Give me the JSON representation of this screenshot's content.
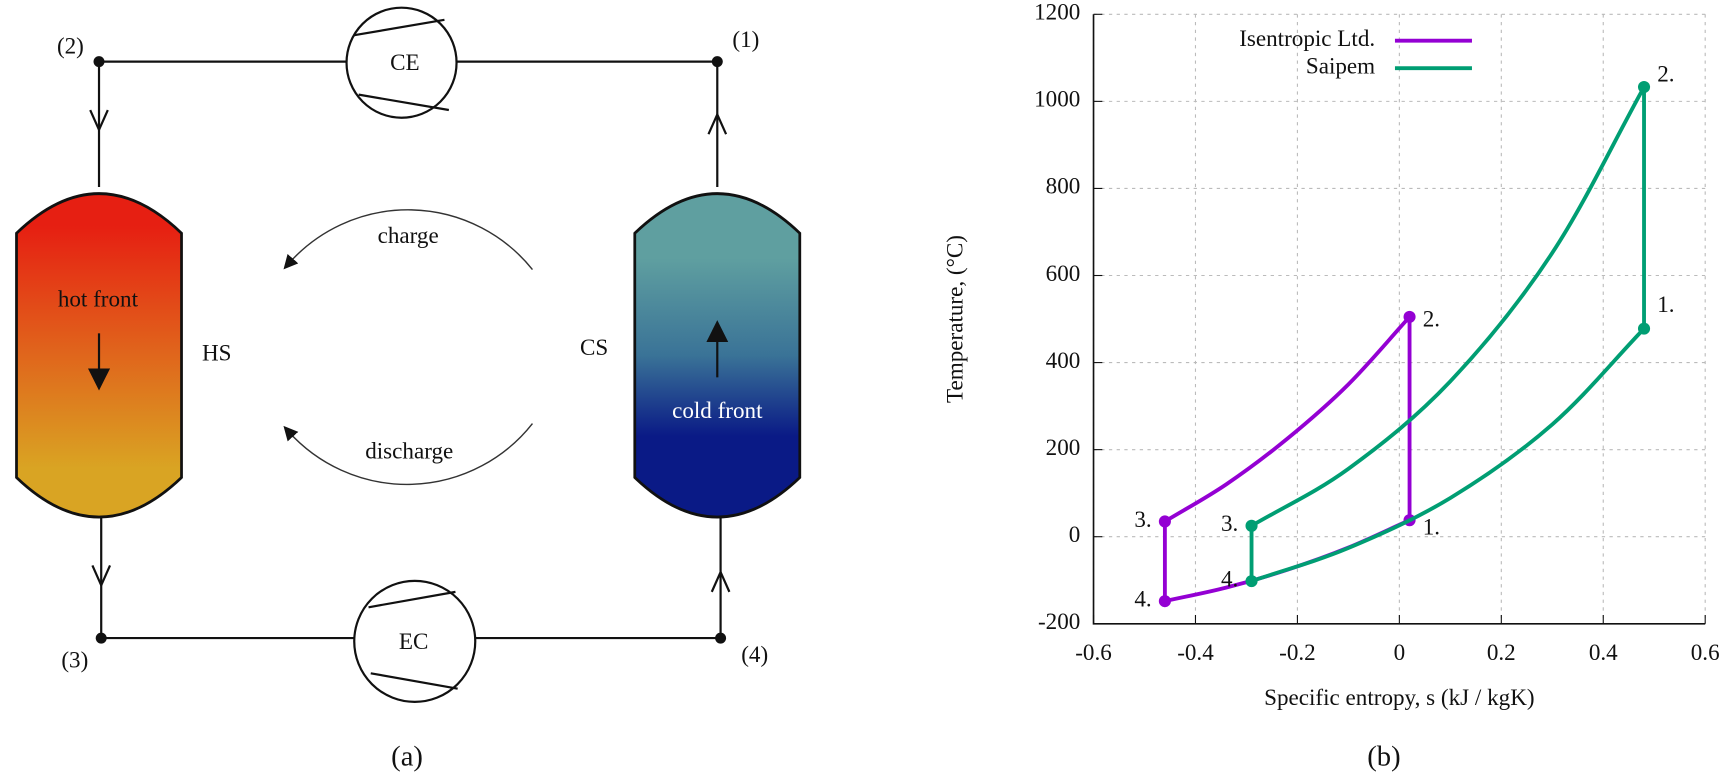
{
  "diagram": {
    "nodes": [
      "(1)",
      "(2)",
      "(3)",
      "(4)"
    ],
    "compressor": "CE",
    "expander": "EC",
    "hot_storage": "HS",
    "cold_storage": "CS",
    "hot_front": "hot front",
    "cold_front": "cold front",
    "charge": "charge",
    "discharge": "discharge",
    "caption": "(a)"
  },
  "chart_data": {
    "type": "line",
    "caption": "(b)",
    "x_label": "Specific entropy, s (kJ / kgK)",
    "y_label": "Temperature, (°C)",
    "xlim": [
      -0.6,
      0.6
    ],
    "xticks": [
      -0.6,
      -0.4,
      -0.2,
      0,
      0.2,
      0.4,
      0.6
    ],
    "ylim": [
      -200,
      1200
    ],
    "yticks": [
      -200,
      0,
      200,
      400,
      600,
      800,
      1000,
      1200
    ],
    "grid": true,
    "legend": "top",
    "series": [
      {
        "name": "Isentropic Ltd.",
        "color": "#9400d3",
        "x": [
          -0.46,
          -0.34,
          -0.22,
          -0.1,
          0.02,
          0.02,
          -0.1,
          -0.22,
          -0.34,
          -0.46
        ],
        "values": [
          35,
          120,
          225,
          350,
          505,
          38,
          -25,
          -76,
          -117,
          -148
        ],
        "point_labels": [
          "3.",
          null,
          null,
          null,
          "2.",
          "1.",
          null,
          null,
          null,
          "4."
        ]
      },
      {
        "name": "Saipem",
        "color": "#009e73",
        "x": [
          -0.29,
          -0.1,
          0.1,
          0.3,
          0.48,
          0.48,
          0.3,
          0.1,
          -0.1,
          -0.29
        ],
        "values": [
          25,
          156,
          357,
          652,
          1033,
          478,
          258,
          89,
          -26,
          -102
        ],
        "point_labels": [
          "3.",
          null,
          null,
          null,
          "2.",
          "1.",
          null,
          null,
          null,
          "4."
        ]
      }
    ]
  }
}
